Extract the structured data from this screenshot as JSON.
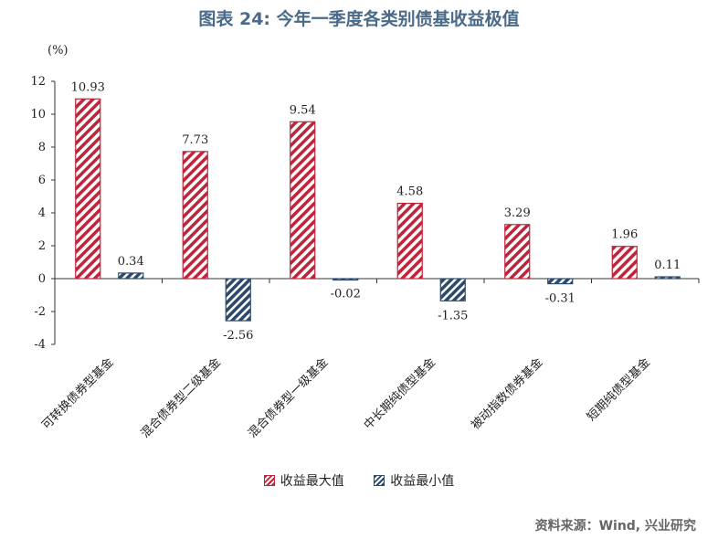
{
  "header": {
    "title": "图表 24: 今年一季度各类别债基收益极值"
  },
  "footer": {
    "source": "资料来源：Wind, 兴业研究"
  },
  "chart_data": {
    "type": "bar",
    "title": "图表 24: 今年一季度各类别债基收益极值",
    "ylabel": "(%)",
    "xlabel": "",
    "ylim": [
      -4,
      12
    ],
    "yticks": [
      -4,
      -2,
      0,
      2,
      4,
      6,
      8,
      10,
      12
    ],
    "categories": [
      "可转换债券型基金",
      "混合债券型二级基金",
      "混合债券型一级基金",
      "中长期纯债型基金",
      "被动指数债券基金",
      "短期纯债型基金"
    ],
    "series": [
      {
        "name": "收益最大值",
        "values": [
          10.93,
          7.73,
          9.54,
          4.58,
          3.29,
          1.96
        ],
        "color": "#c0243a"
      },
      {
        "name": "收益最小值",
        "values": [
          0.34,
          -2.56,
          -0.02,
          -1.35,
          -0.31,
          0.11
        ],
        "color": "#2e4a6b"
      }
    ],
    "legend_position": "bottom",
    "grid": false
  }
}
